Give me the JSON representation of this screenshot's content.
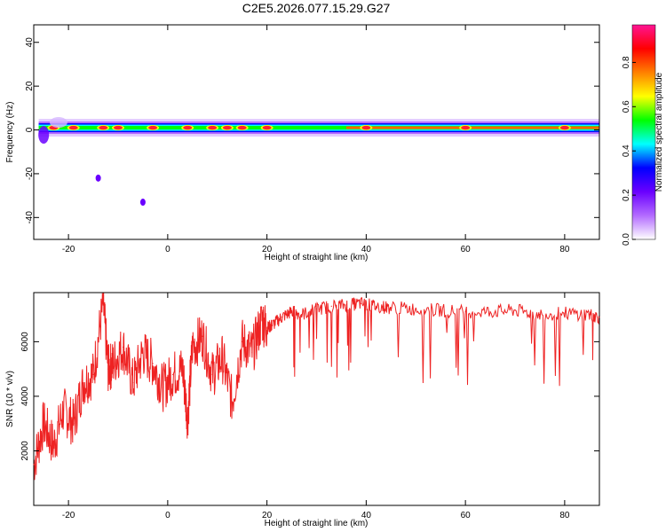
{
  "page": {
    "title": "C2E5.2026.077.15.29.G27"
  },
  "chart_data": [
    {
      "type": "heatmap",
      "xlabel": "Height of straight line (km)",
      "ylabel": "Frequency (Hz)",
      "xlim": [
        -27,
        87
      ],
      "ylim": [
        -50,
        48
      ],
      "xticks": [
        -20,
        0,
        20,
        40,
        60,
        80
      ],
      "xtick_labels": [
        "-20",
        "0",
        "20",
        "40",
        "60",
        "80"
      ],
      "yticks": [
        -40,
        -20,
        0,
        20,
        40
      ],
      "ytick_labels": [
        "-40",
        "-20",
        "0",
        "20",
        "40"
      ],
      "colorbar": {
        "label": "Normalized spectral amplitude",
        "range": [
          0,
          0.97
        ],
        "ticks": [
          0.0,
          0.2,
          0.4,
          0.6,
          0.8
        ],
        "tick_labels": [
          "0.0",
          "0.2",
          "0.4",
          "0.6",
          "0.8"
        ],
        "colors": [
          "#ffffff",
          "#b36bff",
          "#6a00ff",
          "#0000ff",
          "#00ffff",
          "#00ff00",
          "#ffff00",
          "#ff8000",
          "#ff0000",
          "#ff1493"
        ]
      },
      "band": {
        "center_frequency": 1,
        "peaks_x": [
          -23,
          -19,
          -13,
          -10,
          -3,
          4,
          9,
          12,
          15,
          20,
          40,
          60,
          80
        ],
        "scatter_points": [
          {
            "x": -5,
            "y": -33
          },
          {
            "x": -14,
            "y": -22
          }
        ]
      }
    },
    {
      "type": "line",
      "xlabel": "Height of straight line (km)",
      "ylabel": "SNR (10 * v/v)",
      "xlim": [
        -27,
        87
      ],
      "ylim": [
        0,
        7800
      ],
      "xticks": [
        -20,
        0,
        20,
        40,
        60,
        80
      ],
      "xtick_labels": [
        "-20",
        "0",
        "20",
        "40",
        "60",
        "80"
      ],
      "yticks": [
        2000,
        4000,
        6000
      ],
      "ytick_labels": [
        "2000",
        "4000",
        "6000"
      ],
      "series": [
        {
          "color": "#ee2222",
          "x": [
            -27,
            -25,
            -23,
            -21,
            -19,
            -17,
            -15,
            -13,
            -12,
            -11,
            -9,
            -7,
            -5,
            -3,
            -1,
            1,
            3,
            4,
            5,
            7,
            9,
            11,
            13,
            15,
            17,
            19,
            20,
            21,
            23,
            25,
            27,
            30,
            33,
            36,
            39,
            42,
            45,
            50,
            55,
            60,
            65,
            70,
            75,
            80,
            85,
            87
          ],
          "y": [
            1500,
            3000,
            2200,
            3500,
            3000,
            4500,
            4800,
            7400,
            5000,
            5200,
            5800,
            4500,
            5600,
            5200,
            4300,
            4800,
            5000,
            3200,
            5800,
            6200,
            4800,
            5400,
            3800,
            6000,
            5600,
            6800,
            6500,
            6600,
            6900,
            7100,
            7000,
            7200,
            7300,
            7350,
            7400,
            7300,
            7250,
            7200,
            7150,
            7100,
            7100,
            7150,
            7000,
            7050,
            7000,
            6900
          ]
        }
      ]
    }
  ]
}
